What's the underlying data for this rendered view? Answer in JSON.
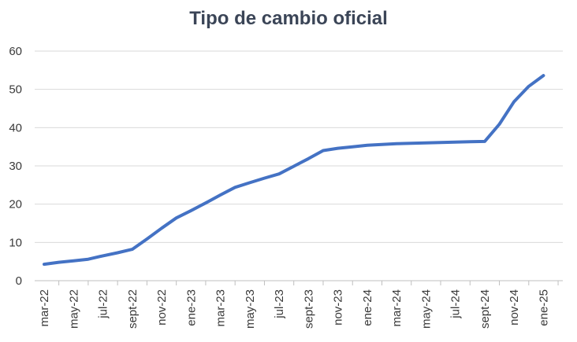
{
  "chart_data": {
    "type": "line",
    "title": "Tipo de cambio oficial",
    "xlabel": "",
    "ylabel": "",
    "ylim": [
      0,
      60
    ],
    "yticks": [
      0,
      10,
      20,
      30,
      40,
      50,
      60
    ],
    "grid": true,
    "line_color": "#4472c4",
    "categories": [
      "mar-22",
      "may-22",
      "jul-22",
      "sept-22",
      "nov-22",
      "ene-23",
      "mar-23",
      "may-23",
      "jul-23",
      "sept-23",
      "nov-23",
      "ene-24",
      "mar-24",
      "may-24",
      "jul-24",
      "sept-24",
      "nov-24",
      "ene-25"
    ],
    "series": [
      {
        "x": [
          "mar-22",
          "abr-22",
          "may-22",
          "jun-22",
          "jul-22",
          "ago-22",
          "sept-22",
          "oct-22",
          "nov-22",
          "dic-22",
          "ene-23",
          "feb-23",
          "mar-23",
          "abr-23",
          "may-23",
          "jun-23",
          "jul-23",
          "ago-23",
          "sept-23",
          "oct-23",
          "nov-23",
          "dic-23",
          "ene-24",
          "feb-24",
          "mar-24",
          "abr-24",
          "may-24",
          "jun-24",
          "jul-24",
          "ago-24",
          "sept-24",
          "oct-24",
          "nov-24",
          "dic-24",
          "ene-25"
        ],
        "values": [
          4.3,
          4.8,
          5.2,
          5.6,
          6.5,
          7.3,
          8.2,
          10.9,
          13.7,
          16.4,
          18.3,
          20.3,
          22.4,
          24.4,
          25.6,
          26.8,
          27.9,
          29.9,
          31.9,
          34.0,
          34.6,
          35.0,
          35.4,
          35.6,
          35.8,
          35.9,
          36.0,
          36.1,
          36.2,
          36.3,
          36.4,
          40.9,
          46.8,
          50.8,
          53.6
        ]
      }
    ]
  }
}
